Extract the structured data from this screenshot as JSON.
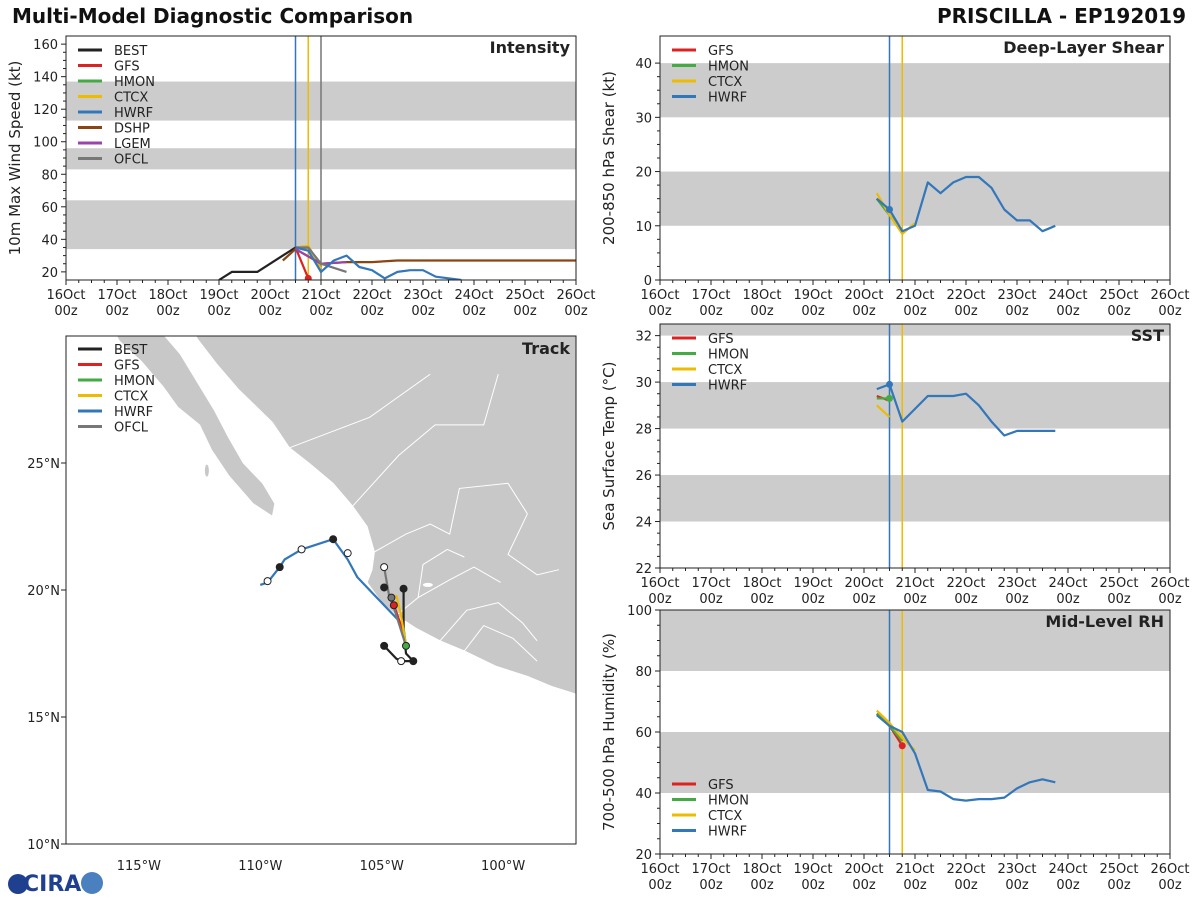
{
  "header": {
    "title": "Multi-Model Diagnostic Comparison",
    "storm": "PRISCILLA - EP192019"
  },
  "colors": {
    "BEST": "#222222",
    "GFS": "#dd2222",
    "HMON": "#44aa44",
    "CTCX": "#eebb00",
    "HWRF": "#3377bb",
    "DSHP": "#8b4513",
    "LGEM": "#9944aa",
    "OFCL": "#777777",
    "band": "#cccccc",
    "land": "#c8c8c8",
    "vline_hwrf": "#3377bb",
    "vline_ctcx": "#eebb00",
    "vline_gray": "#777777"
  },
  "time_axis": {
    "ticks": [
      "16Oct 00z",
      "17Oct 00z",
      "18Oct 00z",
      "19Oct 00z",
      "20Oct 00z",
      "21Oct 00z",
      "22Oct 00z",
      "23Oct 00z",
      "24Oct 00z",
      "25Oct 00z",
      "26Oct 00z"
    ],
    "range_days": [
      0,
      10
    ]
  },
  "chart_data": [
    {
      "id": "intensity",
      "type": "line",
      "title": "Intensity",
      "ylabel": "10m Max Wind Speed (kt)",
      "ylim": [
        15,
        165
      ],
      "yticks": [
        20,
        40,
        60,
        80,
        100,
        120,
        140,
        160
      ],
      "bands": [
        [
          34,
          64
        ],
        [
          83,
          96
        ],
        [
          113,
          137
        ]
      ],
      "vlines": [
        {
          "x": 4.5,
          "color": "vline_hwrf"
        },
        {
          "x": 4.75,
          "color": "vline_ctcx"
        },
        {
          "x": 5.0,
          "color": "vline_gray"
        }
      ],
      "legend": [
        "BEST",
        "GFS",
        "HMON",
        "CTCX",
        "HWRF",
        "DSHP",
        "LGEM",
        "OFCL"
      ],
      "series": [
        {
          "name": "BEST",
          "x": [
            3.0,
            3.25,
            3.75,
            4.25,
            4.5,
            4.75
          ],
          "y": [
            15,
            20,
            20,
            30,
            35,
            35
          ]
        },
        {
          "name": "GFS",
          "x": [
            4.5,
            4.75
          ],
          "y": [
            35,
            16
          ]
        },
        {
          "name": "HMON",
          "x": [
            4.5,
            4.75
          ],
          "y": [
            35,
            35
          ]
        },
        {
          "name": "CTCX",
          "x": [
            4.5,
            4.75,
            5.0
          ],
          "y": [
            35,
            36,
            22
          ]
        },
        {
          "name": "DSHP",
          "x": [
            4.25,
            4.5,
            5.0,
            5.5,
            6.0,
            6.5,
            8.0,
            10.0
          ],
          "y": [
            27,
            34,
            25,
            26,
            26,
            27,
            27,
            27
          ]
        },
        {
          "name": "LGEM",
          "x": [
            4.5,
            5.0,
            5.5
          ],
          "y": [
            34,
            25,
            26
          ]
        },
        {
          "name": "OFCL",
          "x": [
            4.5,
            4.75,
            5.0,
            5.5
          ],
          "y": [
            35,
            35,
            25,
            20
          ]
        },
        {
          "name": "HWRF",
          "x": [
            4.5,
            4.75,
            5.0,
            5.25,
            5.5,
            5.75,
            6.0,
            6.25,
            6.5,
            6.75,
            7.0,
            7.25,
            7.75
          ],
          "y": [
            35,
            33,
            20,
            27,
            30,
            23,
            21,
            16,
            20,
            21,
            21,
            17,
            15
          ]
        }
      ],
      "markers": [
        {
          "series": "GFS",
          "x": 4.75,
          "y": 16
        }
      ]
    },
    {
      "id": "shear",
      "type": "line",
      "title": "Deep-Layer Shear",
      "ylabel": "200-850 hPa Shear (kt)",
      "ylim": [
        0,
        45
      ],
      "yticks": [
        0,
        10,
        20,
        30,
        40
      ],
      "bands": [
        [
          10,
          20
        ],
        [
          30,
          40
        ]
      ],
      "vlines": [
        {
          "x": 4.5,
          "color": "vline_hwrf"
        },
        {
          "x": 4.75,
          "color": "vline_ctcx"
        }
      ],
      "legend": [
        "GFS",
        "HMON",
        "CTCX",
        "HWRF"
      ],
      "series": [
        {
          "name": "GFS",
          "x": [
            4.25,
            4.5
          ],
          "y": [
            15,
            12
          ]
        },
        {
          "name": "HMON",
          "x": [
            4.25,
            4.5,
            4.75
          ],
          "y": [
            15,
            12,
            9
          ]
        },
        {
          "name": "CTCX",
          "x": [
            4.25,
            4.5,
            4.75,
            5.0
          ],
          "y": [
            16,
            12,
            8.5,
            10.5
          ]
        },
        {
          "name": "HWRF",
          "x": [
            4.25,
            4.5,
            4.75,
            5.0,
            5.25,
            5.5,
            5.75,
            6.0,
            6.25,
            6.5,
            6.75,
            7.0,
            7.25,
            7.5,
            7.75
          ],
          "y": [
            15,
            13,
            9,
            10,
            18,
            16,
            18,
            19,
            19,
            17,
            13,
            11,
            11,
            9,
            10
          ]
        }
      ],
      "markers": [
        {
          "series": "HWRF",
          "x": 4.5,
          "y": 13
        }
      ]
    },
    {
      "id": "sst",
      "type": "line",
      "title": "SST",
      "ylabel": "Sea Surface Temp (°C)",
      "ylim": [
        22,
        32.5
      ],
      "yticks": [
        22,
        24,
        26,
        28,
        30,
        32
      ],
      "bands": [
        [
          24,
          26
        ],
        [
          28,
          30
        ],
        [
          32,
          33
        ]
      ],
      "vlines": [
        {
          "x": 4.5,
          "color": "vline_hwrf"
        },
        {
          "x": 4.75,
          "color": "vline_ctcx"
        }
      ],
      "legend": [
        "GFS",
        "HMON",
        "CTCX",
        "HWRF"
      ],
      "series": [
        {
          "name": "GFS",
          "x": [
            4.25,
            4.5
          ],
          "y": [
            29.4,
            29.2
          ]
        },
        {
          "name": "HMON",
          "x": [
            4.25,
            4.5
          ],
          "y": [
            29.3,
            29.3
          ]
        },
        {
          "name": "CTCX",
          "x": [
            4.25,
            4.5
          ],
          "y": [
            29.0,
            28.5
          ]
        },
        {
          "name": "HWRF",
          "x": [
            4.25,
            4.5,
            4.75,
            5.25,
            5.5,
            5.75,
            6.0,
            6.25,
            6.5,
            6.75,
            7.0,
            7.25,
            7.5,
            7.75
          ],
          "y": [
            29.7,
            29.9,
            28.3,
            29.4,
            29.4,
            29.4,
            29.5,
            29.0,
            28.3,
            27.7,
            27.9,
            27.9,
            27.9,
            27.9
          ]
        }
      ],
      "markers": [
        {
          "series": "HWRF",
          "x": 4.5,
          "y": 29.9
        },
        {
          "series": "HMON",
          "x": 4.5,
          "y": 29.3
        }
      ]
    },
    {
      "id": "rh",
      "type": "line",
      "title": "Mid-Level RH",
      "ylabel": "700-500 hPa Humidity (%)",
      "ylim": [
        20,
        100
      ],
      "yticks": [
        20,
        40,
        60,
        80,
        100
      ],
      "bands": [
        [
          40,
          60
        ],
        [
          80,
          100
        ]
      ],
      "vlines": [
        {
          "x": 4.5,
          "color": "vline_hwrf"
        },
        {
          "x": 4.75,
          "color": "vline_ctcx"
        }
      ],
      "legend": [
        "GFS",
        "HMON",
        "CTCX",
        "HWRF"
      ],
      "series": [
        {
          "name": "GFS",
          "x": [
            4.25,
            4.5,
            4.75
          ],
          "y": [
            66,
            62,
            55.5
          ]
        },
        {
          "name": "HMON",
          "x": [
            4.25,
            4.5,
            4.75
          ],
          "y": [
            66,
            62,
            57
          ]
        },
        {
          "name": "CTCX",
          "x": [
            4.25,
            4.5,
            4.75,
            5.0
          ],
          "y": [
            67,
            63,
            58,
            54
          ]
        },
        {
          "name": "HWRF",
          "x": [
            4.25,
            4.5,
            4.75,
            5.0,
            5.25,
            5.5,
            5.75,
            6.0,
            6.25,
            6.5,
            6.75,
            7.0,
            7.25,
            7.5,
            7.75
          ],
          "y": [
            65.5,
            62,
            60,
            53,
            41,
            40.5,
            38,
            37.5,
            38,
            38,
            38.5,
            41.5,
            43.5,
            44.5,
            43.5
          ]
        }
      ],
      "markers": [
        {
          "series": "GFS",
          "x": 4.75,
          "y": 55.5
        }
      ]
    },
    {
      "id": "track",
      "type": "scatter",
      "title": "Track",
      "xlim": [
        -118,
        -97
      ],
      "ylim": [
        10,
        30
      ],
      "xticks": [
        -115,
        -110,
        -105,
        -100
      ],
      "xtick_labels": [
        "115°W",
        "110°W",
        "105°W",
        "100°W"
      ],
      "yticks": [
        10,
        15,
        20,
        25
      ],
      "ytick_labels": [
        "10°N",
        "15°N",
        "20°N",
        "25°N"
      ],
      "legend": [
        "BEST",
        "GFS",
        "HMON",
        "CTCX",
        "HWRF",
        "OFCL"
      ],
      "series": [
        {
          "name": "BEST",
          "lon": [
            -104.9,
            -104.4,
            -104.2,
            -103.9,
            -103.7,
            -104.0,
            -104.1,
            -104.1
          ],
          "lat": [
            17.8,
            17.3,
            17.2,
            17.2,
            17.2,
            17.5,
            18.5,
            20.1
          ]
        },
        {
          "name": "HWRF",
          "lon": [
            -104.0,
            -104.3,
            -105.3,
            -106.0,
            -106.4,
            -107.0,
            -108.3,
            -109.0,
            -109.2,
            -109.7,
            -110.0
          ],
          "lat": [
            17.8,
            18.8,
            19.8,
            20.5,
            21.2,
            22.0,
            21.6,
            21.2,
            20.9,
            20.3,
            20.2
          ]
        },
        {
          "name": "GFS",
          "lon": [
            -104.0,
            -104.2,
            -104.5
          ],
          "lat": [
            17.8,
            18.6,
            19.4
          ]
        },
        {
          "name": "HMON",
          "lon": [
            -104.0,
            -104.1
          ],
          "lat": [
            17.8,
            18.5
          ]
        },
        {
          "name": "CTCX",
          "lon": [
            -104.0,
            -104.2,
            -104.4
          ],
          "lat": [
            17.8,
            19.0,
            19.8
          ]
        },
        {
          "name": "OFCL",
          "lon": [
            -104.0,
            -104.5,
            -104.7,
            -104.9
          ],
          "lat": [
            17.8,
            19.3,
            19.8,
            20.9
          ]
        }
      ],
      "points": [
        {
          "lon": -104.9,
          "lat": 17.8,
          "fill": "#222222"
        },
        {
          "lon": -104.2,
          "lat": 17.2,
          "fill": "#ffffff"
        },
        {
          "lon": -103.7,
          "lat": 17.2,
          "fill": "#222222"
        },
        {
          "lon": -104.1,
          "lat": 20.05,
          "fill": "#222222"
        },
        {
          "lon": -104.9,
          "lat": 20.1,
          "fill": "#222222"
        },
        {
          "lon": -104.9,
          "lat": 20.9,
          "fill": "#ffffff"
        },
        {
          "lon": -104.6,
          "lat": 19.7,
          "fill": "#777777"
        },
        {
          "lon": -104.5,
          "lat": 19.4,
          "fill": "#dd2222"
        },
        {
          "lon": -104.0,
          "lat": 17.8,
          "fill": "#44aa44"
        },
        {
          "lon": -107.0,
          "lat": 22.0,
          "fill": "#222222"
        },
        {
          "lon": -108.3,
          "lat": 21.6,
          "fill": "#ffffff"
        },
        {
          "lon": -106.4,
          "lat": 21.45,
          "fill": "#ffffff"
        },
        {
          "lon": -109.2,
          "lat": 20.9,
          "fill": "#222222"
        },
        {
          "lon": -109.7,
          "lat": 20.35,
          "fill": "#ffffff"
        }
      ]
    }
  ]
}
